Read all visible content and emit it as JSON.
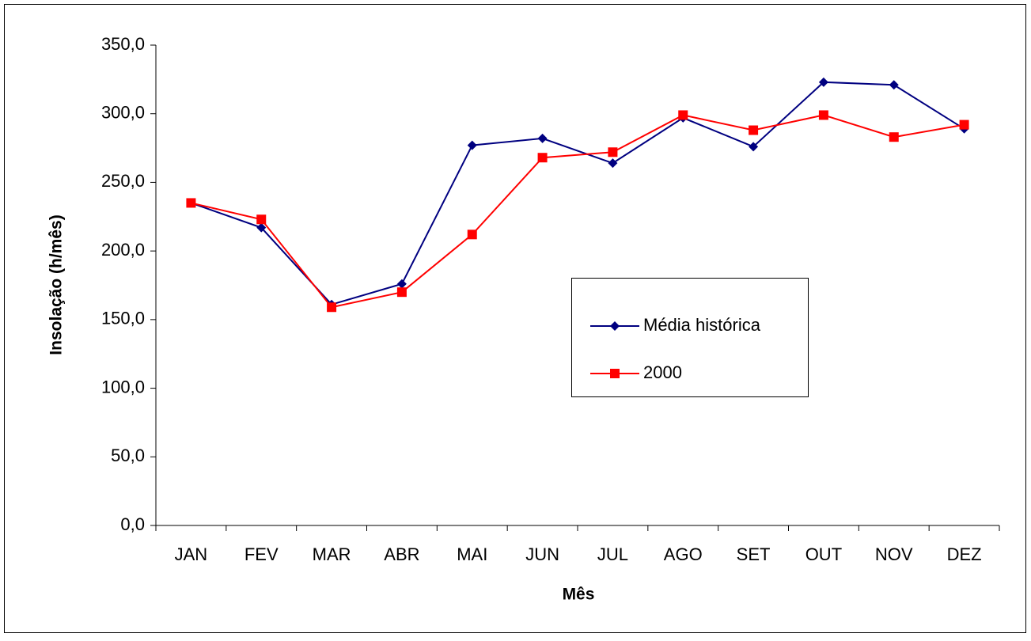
{
  "chart_data": {
    "type": "line",
    "x_label": "Mês",
    "y_label": "Insolação (h/mês)",
    "categories": [
      "JAN",
      "FEV",
      "MAR",
      "ABR",
      "MAI",
      "JUN",
      "JUL",
      "AGO",
      "SET",
      "OUT",
      "NOV",
      "DEZ"
    ],
    "series": [
      {
        "name": "Média histórica",
        "color": "#000080",
        "marker": "diamond",
        "values": [
          235,
          217,
          161,
          176,
          277,
          282,
          264,
          297,
          276,
          323,
          321,
          289
        ]
      },
      {
        "name": "2000",
        "color": "#ff0000",
        "marker": "square",
        "values": [
          235,
          223,
          159,
          170,
          212,
          268,
          272,
          299,
          288,
          299,
          283,
          292
        ]
      }
    ],
    "ylim": [
      0,
      350
    ],
    "yticks": [
      {
        "value": 0,
        "label": "0,0"
      },
      {
        "value": 50,
        "label": "50,0"
      },
      {
        "value": 100,
        "label": "100,0"
      },
      {
        "value": 150,
        "label": "150,0"
      },
      {
        "value": 200,
        "label": "200,0"
      },
      {
        "value": 250,
        "label": "250,0"
      },
      {
        "value": 300,
        "label": "300,0"
      },
      {
        "value": 350,
        "label": "350,0"
      }
    ],
    "grid": false
  }
}
